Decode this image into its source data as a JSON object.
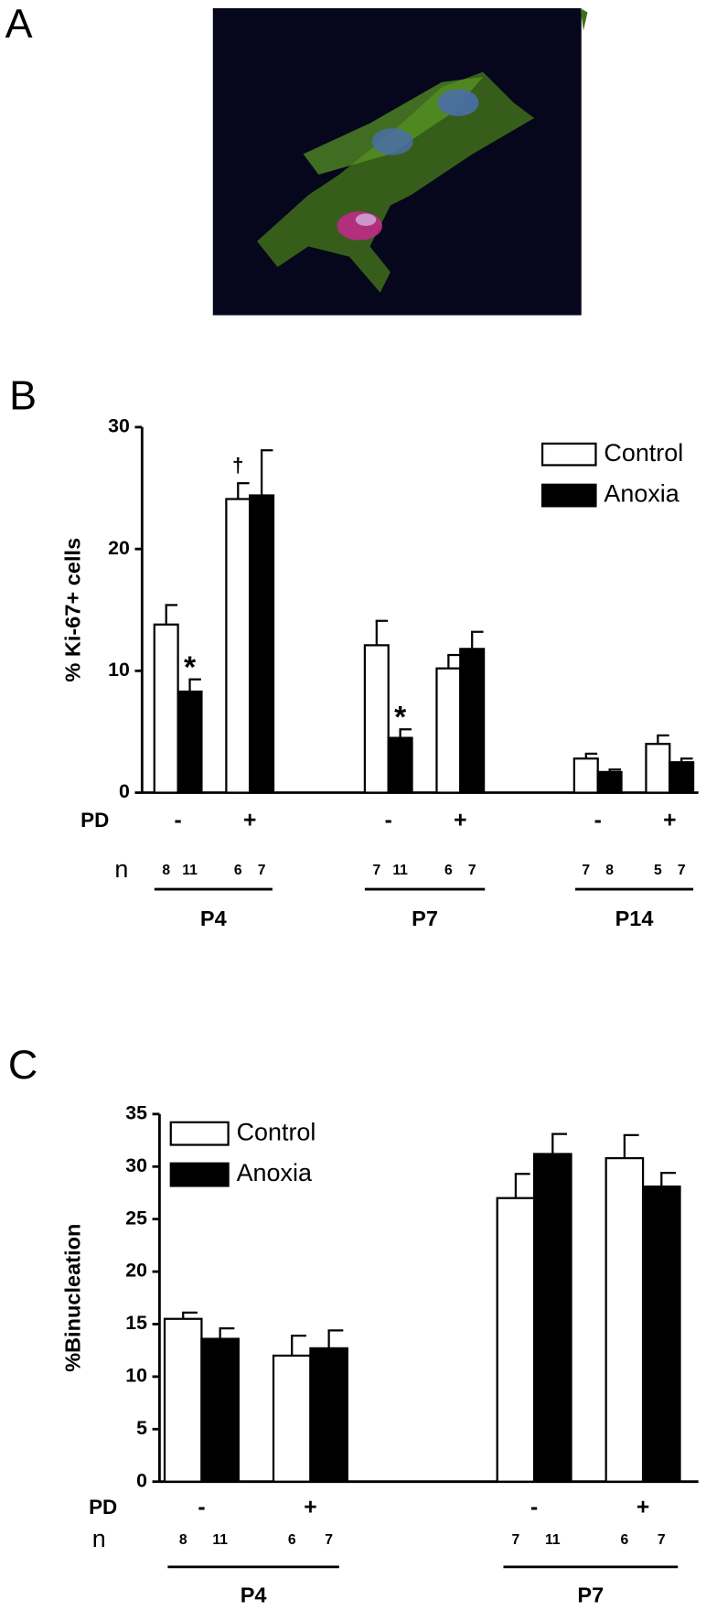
{
  "panel_a": {
    "label": "A"
  },
  "chart_data": [
    {
      "type": "bar",
      "panel": "B",
      "ylabel": "% Ki-67+ cells",
      "pd_label": "PD",
      "n_label": "n",
      "categories": [
        "-",
        "+",
        "-",
        "+",
        "-",
        "+"
      ],
      "groups": [
        "P4",
        "P7",
        "P14"
      ],
      "series": [
        {
          "name": "Control",
          "color": "#ffffff",
          "values": [
            13.8,
            24.1,
            12.1,
            10.2,
            2.8,
            4.0
          ],
          "errors": [
            1.6,
            1.3,
            2.0,
            1.1,
            0.4,
            0.7
          ],
          "n": [
            8,
            6,
            7,
            6,
            7,
            5
          ],
          "annotations": [
            null,
            "†",
            null,
            null,
            null,
            null
          ]
        },
        {
          "name": "Anoxia",
          "color": "#000000",
          "values": [
            8.3,
            24.4,
            4.5,
            11.8,
            1.7,
            2.5
          ],
          "errors": [
            1.0,
            3.7,
            0.7,
            1.4,
            0.2,
            0.3
          ],
          "n": [
            11,
            7,
            11,
            7,
            8,
            7
          ],
          "annotations": [
            "*",
            null,
            "*",
            null,
            null,
            null
          ]
        }
      ],
      "edgecolor": "#000000",
      "ylim": [
        0,
        30
      ],
      "yticks": [
        0,
        10,
        20,
        30
      ],
      "legend": "upper right",
      "grid": false
    },
    {
      "type": "bar",
      "panel": "C",
      "ylabel": "%Binucleation",
      "pd_label": "PD",
      "n_label": "n",
      "categories": [
        "-",
        "+",
        "-",
        "+"
      ],
      "groups": [
        "P4",
        "P7"
      ],
      "series": [
        {
          "name": "Control",
          "color": "#ffffff",
          "values": [
            15.5,
            12.0,
            27.0,
            30.8
          ],
          "errors": [
            0.6,
            1.9,
            2.3,
            2.2
          ],
          "n": [
            8,
            6,
            7,
            6
          ],
          "annotations": [
            null,
            null,
            null,
            null
          ]
        },
        {
          "name": "Anoxia",
          "color": "#000000",
          "values": [
            13.6,
            12.7,
            31.2,
            28.1
          ],
          "errors": [
            1.0,
            1.7,
            1.9,
            1.3
          ],
          "n": [
            11,
            7,
            11,
            7
          ],
          "annotations": [
            null,
            null,
            null,
            null
          ]
        }
      ],
      "edgecolor": "#000000",
      "ylim": [
        0,
        35
      ],
      "yticks": [
        0,
        5,
        10,
        15,
        20,
        25,
        30,
        35
      ],
      "legend": "upper left",
      "grid": false
    }
  ]
}
